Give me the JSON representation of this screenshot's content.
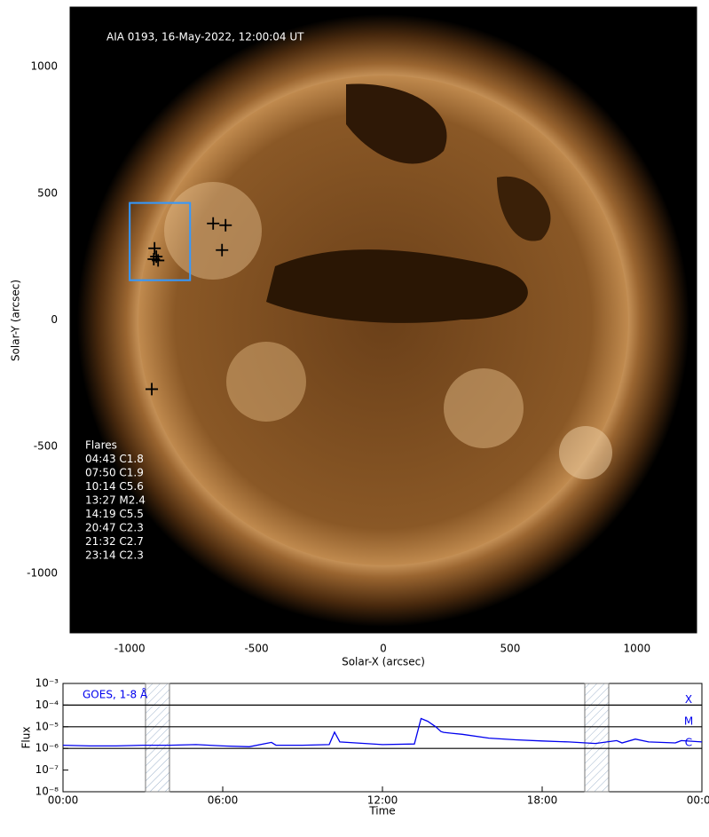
{
  "chart_data": [
    {
      "type": "scatter",
      "annotation": "AIA 0193, 16-May-2022, 12:00:04 UT",
      "x_label": "Solar-X (arcsec)",
      "y_label": "Solar-Y (arcsec)",
      "xlim": [
        -1235,
        1235
      ],
      "ylim": [
        -1235,
        1235
      ],
      "xticks": [
        -1000,
        -500,
        0,
        500,
        1000
      ],
      "yticks": [
        -1000,
        -500,
        0,
        500,
        1000
      ],
      "x": [
        -902,
        -905,
        -888,
        -671,
        -622,
        -636,
        -913,
        -895
      ],
      "y": [
        283,
        240,
        235,
        381,
        374,
        276,
        -273,
        250
      ],
      "color": "#000000",
      "box": {
        "x": [
          -1000,
          -762
        ],
        "y": [
          157,
          462
        ],
        "color": "#3399ff"
      },
      "flares_title": "Flares",
      "flares": [
        "04:43 C1.8",
        "07:50 C1.9",
        "10:14 C5.6",
        "13:27 M2.4",
        "14:19 C5.5",
        "20:47 C2.3",
        "21:32 C2.7",
        "23:14 C2.3"
      ]
    },
    {
      "type": "line",
      "log_y": true,
      "x_label": "Time",
      "y_label": "Flux",
      "xlim": [
        0,
        24
      ],
      "ylim": [
        1e-08,
        0.001
      ],
      "xticks": [
        {
          "value": 0,
          "label": "00:00"
        },
        {
          "value": 6,
          "label": "06:00"
        },
        {
          "value": 12,
          "label": "12:00"
        },
        {
          "value": 18,
          "label": "18:00"
        },
        {
          "value": 24,
          "label": "00:00"
        }
      ],
      "yticks": [
        {
          "value": 1e-08,
          "label": "10⁻⁸"
        },
        {
          "value": 1e-07,
          "label": "10⁻⁷"
        },
        {
          "value": 1e-06,
          "label": "10⁻⁶"
        },
        {
          "value": 1e-05,
          "label": "10⁻⁵"
        },
        {
          "value": 0.0001,
          "label": "10⁻⁴"
        },
        {
          "value": 0.001,
          "label": "10⁻³"
        }
      ],
      "levels": [
        {
          "value": 0.0001,
          "label": "X"
        },
        {
          "value": 1e-05,
          "label": "M"
        },
        {
          "value": 1e-06,
          "label": "C"
        }
      ],
      "shaded": [
        [
          3.1,
          4.0
        ],
        [
          19.6,
          20.5
        ]
      ],
      "x": [
        0,
        1,
        2,
        3,
        4,
        5,
        6,
        7,
        7.83,
        8,
        9,
        10,
        10.2,
        10.4,
        11,
        12,
        13.2,
        13.45,
        13.7,
        14,
        14.2,
        14.3,
        14.6,
        15,
        16,
        17,
        18,
        19,
        20,
        20.8,
        21,
        21.5,
        22,
        23,
        23.23,
        24
      ],
      "series": [
        {
          "name": "GOES, 1-8 Å",
          "color": "#0000ee",
          "values": [
            1.4e-06,
            1.3e-06,
            1.3e-06,
            1.4e-06,
            1.4e-06,
            1.5e-06,
            1.3e-06,
            1.2e-06,
            1.9e-06,
            1.4e-06,
            1.4e-06,
            1.5e-06,
            5.6e-06,
            2e-06,
            1.8e-06,
            1.5e-06,
            1.6e-06,
            2.4e-05,
            1.8e-05,
            1e-05,
            6e-06,
            5.5e-06,
            5e-06,
            4.5e-06,
            3e-06,
            2.5e-06,
            2.2e-06,
            2e-06,
            1.7e-06,
            2.3e-06,
            1.8e-06,
            2.7e-06,
            2e-06,
            1.8e-06,
            2.3e-06,
            2e-06
          ]
        }
      ]
    }
  ]
}
